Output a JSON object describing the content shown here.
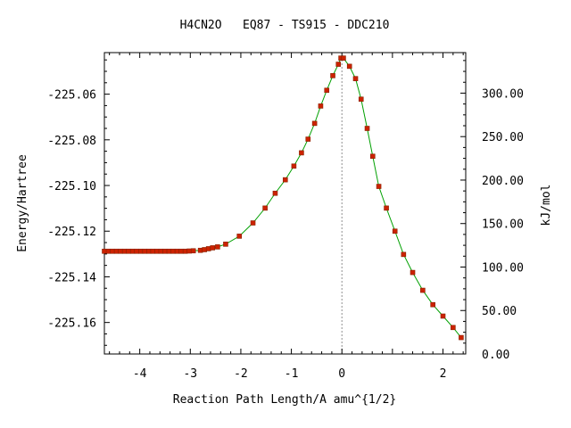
{
  "chart_data": {
    "type": "scatter",
    "title": "H4CN2O   EQ87 - TS915 - DDC210",
    "xlabel": "Reaction Path Length/A amu^{1/2}",
    "ylabel": "Energy/Hartree",
    "y2label": "kJ/mol",
    "xlim": [
      -4.7,
      2.45
    ],
    "ylim": [
      -225.1738,
      -225.0418
    ],
    "y2lim": [
      0.0,
      346.6
    ],
    "xticks": [
      -4,
      -3,
      -2,
      -1,
      0,
      2
    ],
    "xtick_labels": [
      "-4",
      "-3",
      "-2",
      "-1",
      "0",
      "2"
    ],
    "xtick_label_positions": [
      -4,
      -3,
      -2,
      -1,
      0,
      2
    ],
    "yticks": [
      -225.06,
      -225.08,
      -225.1,
      -225.12,
      -225.14,
      -225.16
    ],
    "ytick_labels": [
      "-225.06",
      "-225.08",
      "-225.10",
      "-225.12",
      "-225.14",
      "-225.16"
    ],
    "y2ticks": [
      0,
      50,
      100,
      150,
      200,
      250,
      300
    ],
    "y2tick_labels": [
      "0.00",
      "50.00",
      "100.00",
      "150.00",
      "200.00",
      "250.00",
      "300.00"
    ],
    "ts_x": 0.0,
    "grid": false,
    "legend": "none",
    "colors": {
      "line": "#00a000",
      "marker": "#cc2200",
      "marker_edge": "#882200",
      "ts_line": "#909090"
    },
    "series": [
      {
        "x": [
          -4.7,
          -4.62,
          -4.54,
          -4.46,
          -4.38,
          -4.3,
          -4.22,
          -4.14,
          -4.06,
          -3.98,
          -3.9,
          -3.82,
          -3.74,
          -3.66,
          -3.58,
          -3.5,
          -3.42,
          -3.34,
          -3.26,
          -3.18,
          -3.1,
          -3.02,
          -2.94,
          -2.8,
          -2.72,
          -2.64,
          -2.56,
          -2.46,
          -2.3,
          -2.03,
          -1.76,
          -1.52,
          -1.32,
          -1.12,
          -0.95,
          -0.8,
          -0.67,
          -0.54,
          -0.42,
          -0.3,
          -0.18,
          -0.07,
          -0.02,
          0.03,
          0.15,
          0.27,
          0.38,
          0.5,
          0.61,
          0.73,
          0.88,
          1.05,
          1.22,
          1.4,
          1.6,
          1.8,
          2.0,
          2.2,
          2.36
        ],
        "y": [
          -225.1288,
          -225.1288,
          -225.1288,
          -225.1288,
          -225.1288,
          -225.1288,
          -225.1288,
          -225.1288,
          -225.1288,
          -225.1288,
          -225.1288,
          -225.1288,
          -225.1288,
          -225.1288,
          -225.1288,
          -225.1288,
          -225.1288,
          -225.1288,
          -225.1288,
          -225.1288,
          -225.1288,
          -225.1287,
          -225.1286,
          -225.1284,
          -225.1281,
          -225.1277,
          -225.1273,
          -225.1269,
          -225.1257,
          -225.1222,
          -225.1164,
          -225.1099,
          -225.1034,
          -225.0975,
          -225.0915,
          -225.0857,
          -225.0797,
          -225.0728,
          -225.0652,
          -225.0583,
          -225.0519,
          -225.0469,
          -225.0442,
          -225.0442,
          -225.0478,
          -225.0532,
          -225.0622,
          -225.075,
          -225.0872,
          -225.1004,
          -225.1099,
          -225.12,
          -225.1302,
          -225.1381,
          -225.1459,
          -225.1522,
          -225.1572,
          -225.1622,
          -225.1666
        ]
      }
    ]
  }
}
